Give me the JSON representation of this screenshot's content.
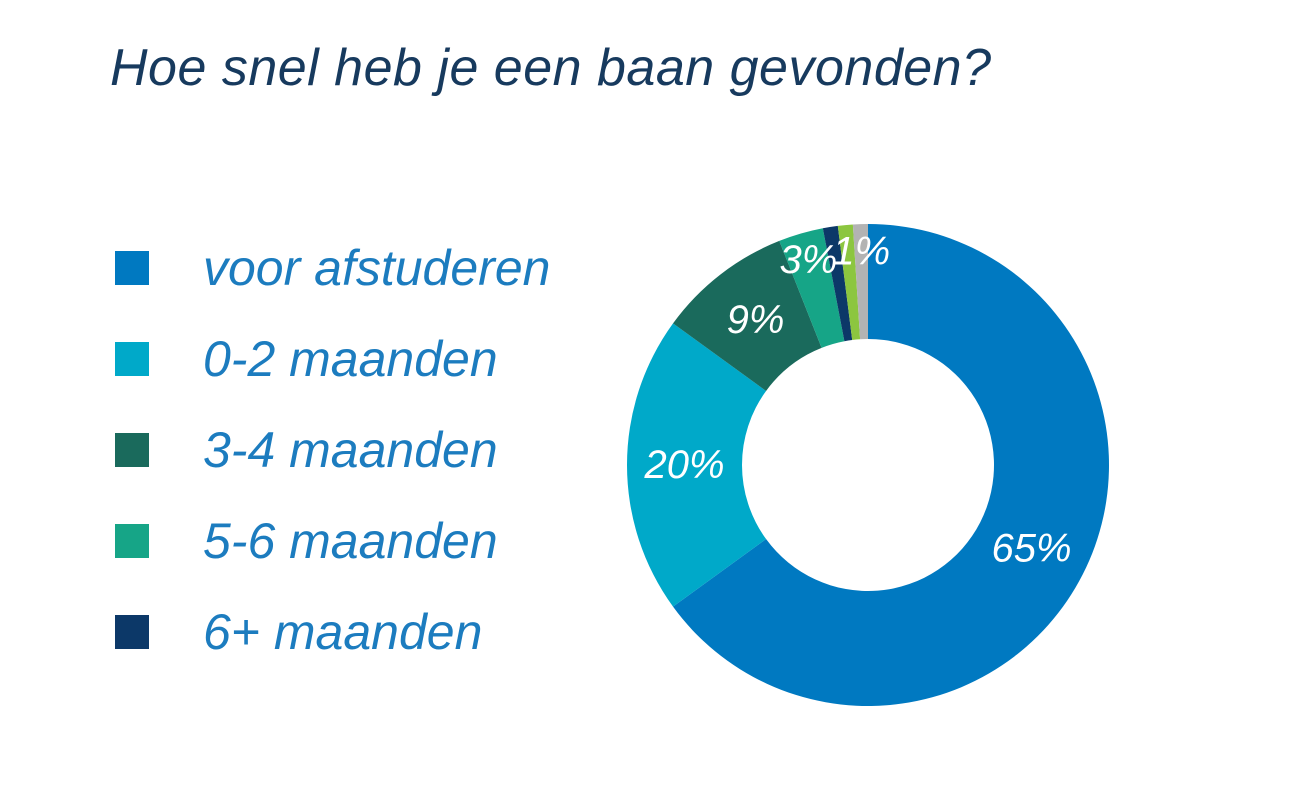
{
  "chart_data": {
    "type": "pie",
    "variant": "donut",
    "title": "Hoe snel heb je een baan gevonden?",
    "legend_position": "left",
    "categories": [
      "voor afstuderen",
      "0-2 maanden",
      "3-4 maanden",
      "5-6 maanden",
      "6+ maanden",
      "",
      ""
    ],
    "values": [
      65,
      20,
      9,
      3,
      1,
      1,
      1
    ],
    "data_labels": [
      "65%",
      "20%",
      "9%",
      "3%",
      "",
      "",
      "1%"
    ],
    "colors": [
      "#0079c1",
      "#00a9c9",
      "#1a6a5c",
      "#16a587",
      "#0c3868",
      "#8cc63f",
      "#b3b3b3"
    ],
    "legend_count": 5
  }
}
